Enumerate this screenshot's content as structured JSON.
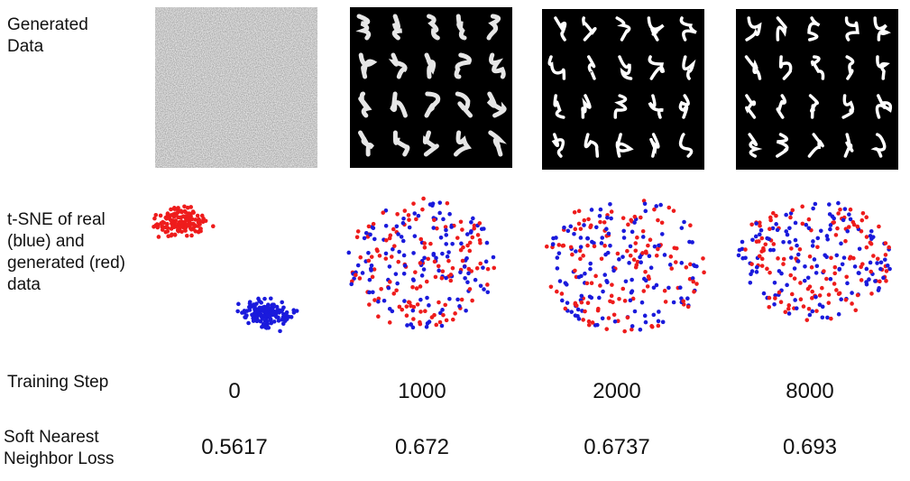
{
  "row_labels": [
    "Generated Data",
    "t-SNE of real (blue) and generated (red) data",
    "Training Step",
    "Soft Nearest Neighbor Loss"
  ],
  "columns": [
    {
      "training_step": 0,
      "loss": 0.5617
    },
    {
      "training_step": 1000,
      "loss": 0.672
    },
    {
      "training_step": 2000,
      "loss": 0.6737
    },
    {
      "training_step": 8000,
      "loss": 0.693
    }
  ]
}
